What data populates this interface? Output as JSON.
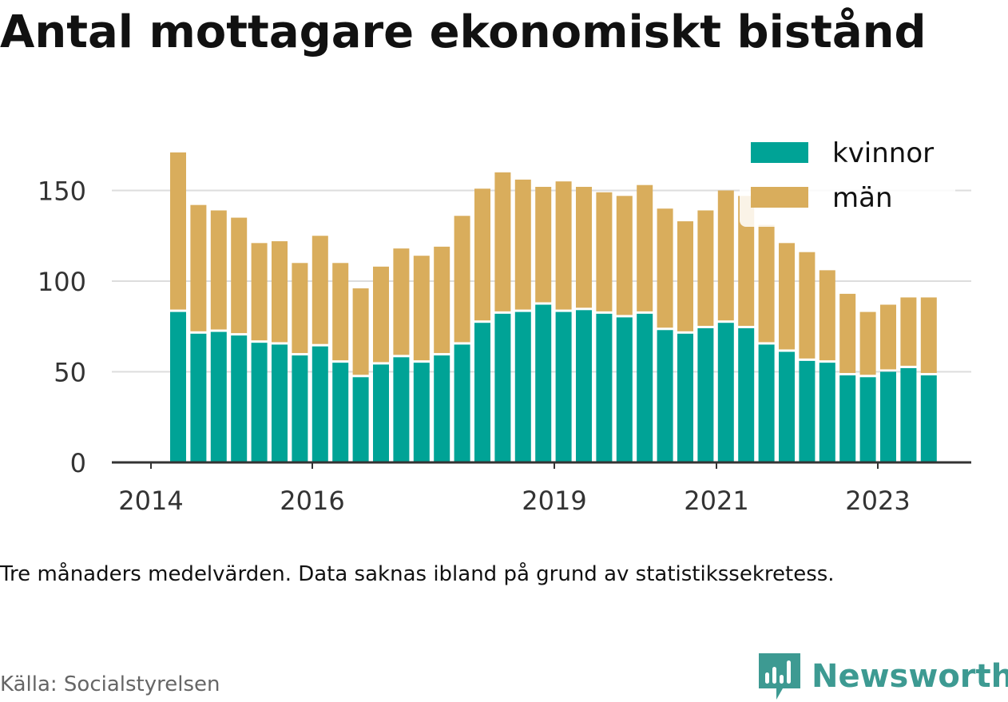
{
  "title": "Antal mottagare ekonomiskt bistånd",
  "note": "Tre månaders medelvärden. Data saknas ibland på grund av statistikssekretess.",
  "source": "Källa: Socialstyrelsen",
  "brand": "Newsworthy",
  "colors": {
    "kvinnor": "#00a396",
    "man": "#d9ad5c",
    "brand": "#3d9a92"
  },
  "chart_data": {
    "type": "bar",
    "stacked": true,
    "title": "Antal mottagare ekonomiskt bistånd",
    "x_ticks": [
      "2014",
      "2016",
      "2019",
      "2021",
      "2023"
    ],
    "y_ticks": [
      0,
      50,
      100,
      150
    ],
    "ylim": [
      0,
      175
    ],
    "grid": true,
    "legend": "top-right",
    "series": [
      {
        "name": "kvinnor",
        "values": [
          83,
          71,
          72,
          70,
          66,
          65,
          59,
          64,
          55,
          47,
          54,
          58,
          55,
          59,
          65,
          77,
          82,
          83,
          87,
          83,
          84,
          82,
          80,
          82,
          73,
          71,
          74,
          77,
          74,
          65,
          61,
          56,
          55,
          48,
          47,
          50,
          52,
          48
        ]
      },
      {
        "name": "män",
        "values": [
          88,
          71,
          67,
          65,
          55,
          57,
          51,
          61,
          55,
          49,
          54,
          60,
          59,
          60,
          71,
          74,
          78,
          73,
          65,
          72,
          68,
          67,
          67,
          71,
          67,
          62,
          65,
          73,
          73,
          66,
          60,
          60,
          51,
          45,
          36,
          37,
          39,
          43
        ]
      }
    ]
  }
}
